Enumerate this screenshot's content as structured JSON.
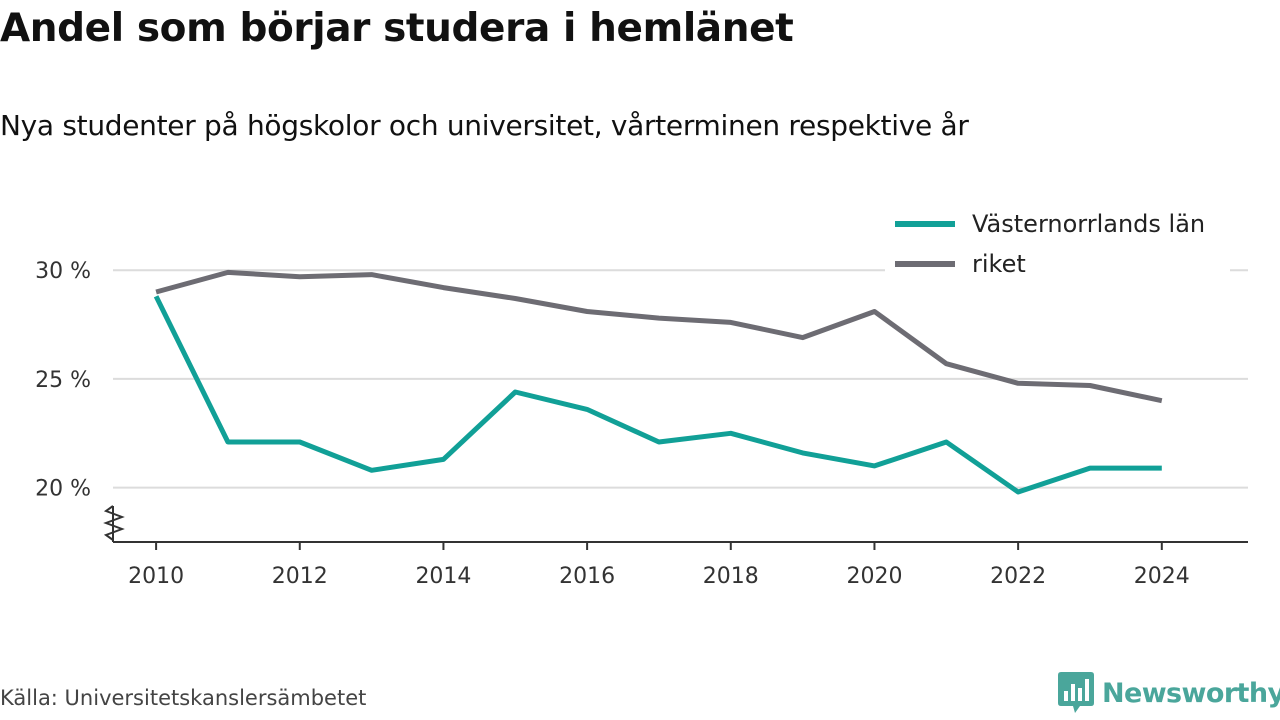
{
  "header": {
    "title": "Andel som börjar studera i hemlänet",
    "subtitle": "Nya studenter på högskolor och universitet, vårterminen respektive år"
  },
  "footer": {
    "source": "Källa: Universitetskanslersämbetet",
    "brand": "Newsworthy",
    "brand_icon": "bar-chart-speech-bubble-icon",
    "brand_color": "#4aa69b"
  },
  "chart_data": {
    "type": "line",
    "title": "Andel som börjar studera i hemlänet",
    "subtitle": "Nya studenter på högskolor och universitet, vårterminen respektive år",
    "xlabel": "",
    "ylabel": "",
    "x": [
      2010,
      2011,
      2012,
      2013,
      2014,
      2015,
      2016,
      2017,
      2018,
      2019,
      2020,
      2021,
      2022,
      2023,
      2024
    ],
    "xlim": [
      2009.4,
      2025.2
    ],
    "ylim": [
      17.5,
      33
    ],
    "y_axis_break": true,
    "grid": true,
    "legend_position": "top-right",
    "x_ticks": [
      2010,
      2012,
      2014,
      2016,
      2018,
      2020,
      2022,
      2024
    ],
    "x_tick_labels": [
      "2010",
      "2012",
      "2014",
      "2016",
      "2018",
      "2020",
      "2022",
      "2024"
    ],
    "y_ticks": [
      20,
      25,
      30
    ],
    "y_tick_labels": [
      "20 %",
      "25 %",
      "30 %"
    ],
    "series": [
      {
        "name": "Västernorrlands län",
        "color": "#11a097",
        "values": [
          28.8,
          22.1,
          22.1,
          20.8,
          21.3,
          24.4,
          23.6,
          22.1,
          22.5,
          21.6,
          21.0,
          22.1,
          19.8,
          20.9,
          20.9
        ]
      },
      {
        "name": "riket",
        "color": "#6d6c73",
        "values": [
          29.0,
          29.9,
          29.7,
          29.8,
          29.2,
          28.7,
          28.1,
          27.8,
          27.6,
          26.9,
          28.1,
          25.7,
          24.8,
          24.7,
          24.0
        ]
      }
    ]
  }
}
